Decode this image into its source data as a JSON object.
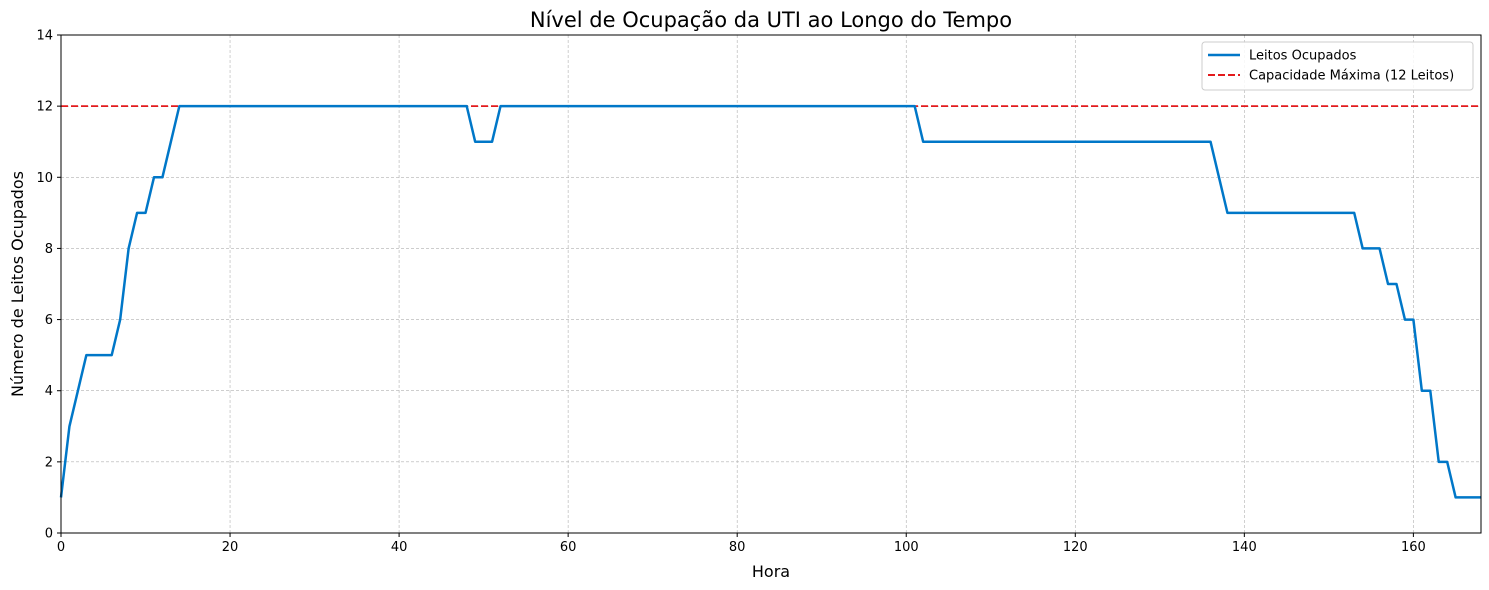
{
  "chart_data": {
    "type": "line",
    "title": "Nível de Ocupação da UTI ao Longo do Tempo",
    "xlabel": "Hora",
    "ylabel": "Número de Leitos Ocupados",
    "xlim": [
      0,
      168
    ],
    "ylim": [
      0,
      14
    ],
    "xticks": [
      "0",
      "20",
      "40",
      "60",
      "80",
      "100",
      "120",
      "140",
      "160"
    ],
    "yticks": [
      "0",
      "2",
      "4",
      "6",
      "8",
      "10",
      "12",
      "14"
    ],
    "grid": true,
    "legend_position": "top-right",
    "series": [
      {
        "name": "Leitos Ocupados",
        "color": "#0077c8",
        "style": "solid",
        "x": [
          0,
          1,
          3,
          6,
          7,
          8,
          9,
          10,
          11,
          12,
          14,
          48,
          49,
          51,
          52,
          101,
          102,
          136,
          138,
          153,
          154,
          156,
          157,
          158,
          159,
          160,
          161,
          162,
          163,
          164,
          165,
          168
        ],
        "y": [
          1,
          3,
          5,
          5,
          6,
          8,
          9,
          9,
          10,
          10,
          12,
          12,
          11,
          11,
          12,
          12,
          11,
          11,
          9,
          9,
          8,
          8,
          7,
          7,
          6,
          6,
          4,
          4,
          2,
          2,
          1,
          1
        ]
      },
      {
        "name": "Capacidade Máxima (12 Leitos)",
        "color": "#e31a1c",
        "style": "dashed",
        "y_constant": 12
      }
    ]
  }
}
